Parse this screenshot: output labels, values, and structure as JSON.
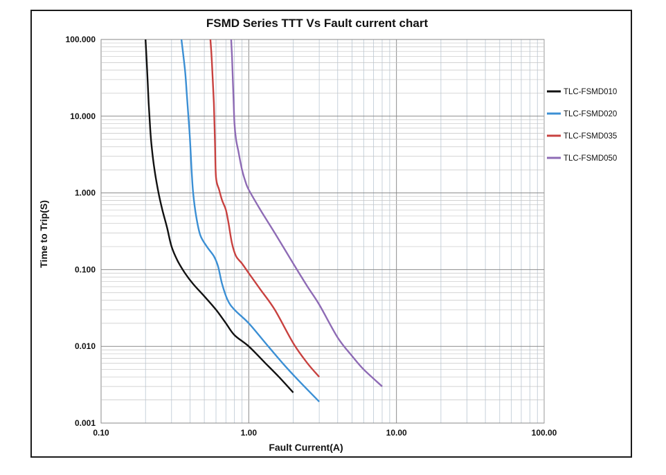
{
  "chart_data": {
    "type": "line",
    "title": "FSMD Series TTT Vs Fault current chart",
    "xlabel": "Fault Current(A)",
    "ylabel": "Time to Trip(S)",
    "x_scale": "log",
    "y_scale": "log",
    "xlim": [
      0.1,
      100
    ],
    "ylim": [
      0.001,
      100
    ],
    "x_ticks": [
      0.1,
      1,
      10,
      100
    ],
    "x_tick_labels": [
      "0.10",
      "1.00",
      "10.00",
      "100.00"
    ],
    "y_ticks": [
      0.001,
      0.01,
      0.1,
      1,
      10,
      100
    ],
    "y_tick_labels": [
      "0.001",
      "0.010",
      "0.100",
      "1.000",
      "10.000",
      "100.000"
    ],
    "grid": true,
    "legend_position": "right",
    "series": [
      {
        "name": "TLC-FSMD010",
        "color": "#111111",
        "x": [
          0.2,
          0.205,
          0.21,
          0.215,
          0.22,
          0.23,
          0.245,
          0.26,
          0.28,
          0.3,
          0.33,
          0.37,
          0.42,
          0.5,
          0.6,
          0.7,
          0.8,
          1.0,
          1.3,
          1.6,
          2.0
        ],
        "y": [
          100,
          40,
          15,
          7,
          4,
          2,
          1,
          0.6,
          0.35,
          0.2,
          0.13,
          0.09,
          0.065,
          0.045,
          0.03,
          0.02,
          0.014,
          0.01,
          0.006,
          0.004,
          0.0025
        ]
      },
      {
        "name": "TLC-FSMD020",
        "color": "#3b8fd4",
        "x": [
          0.35,
          0.37,
          0.38,
          0.39,
          0.4,
          0.41,
          0.42,
          0.44,
          0.47,
          0.52,
          0.58,
          0.62,
          0.66,
          0.72,
          0.8,
          1.0,
          1.3,
          1.7,
          2.2,
          3.0
        ],
        "y": [
          100,
          40,
          20,
          10,
          5,
          2,
          1,
          0.5,
          0.28,
          0.2,
          0.15,
          0.11,
          0.065,
          0.04,
          0.03,
          0.02,
          0.011,
          0.006,
          0.0035,
          0.0019
        ]
      },
      {
        "name": "TLC-FSMD035",
        "color": "#c8413f",
        "x": [
          0.55,
          0.56,
          0.57,
          0.58,
          0.59,
          0.6,
          0.63,
          0.66,
          0.7,
          0.73,
          0.77,
          0.82,
          0.9,
          1.0,
          1.2,
          1.5,
          2.0,
          2.5,
          3.0
        ],
        "y": [
          100,
          60,
          30,
          15,
          5,
          1.6,
          1.1,
          0.8,
          0.6,
          0.4,
          0.22,
          0.15,
          0.12,
          0.09,
          0.055,
          0.03,
          0.011,
          0.006,
          0.004
        ]
      },
      {
        "name": "TLC-FSMD050",
        "color": "#8e6bb5",
        "x": [
          0.76,
          0.77,
          0.78,
          0.79,
          0.8,
          0.82,
          0.85,
          0.9,
          0.95,
          1.0,
          1.2,
          1.5,
          2.0,
          2.5,
          3.0,
          4.0,
          5.0,
          6.0,
          8.0
        ],
        "y": [
          100,
          60,
          30,
          15,
          8,
          5,
          3.5,
          2,
          1.4,
          1.1,
          0.6,
          0.3,
          0.12,
          0.06,
          0.035,
          0.013,
          0.0075,
          0.005,
          0.003
        ]
      }
    ]
  }
}
